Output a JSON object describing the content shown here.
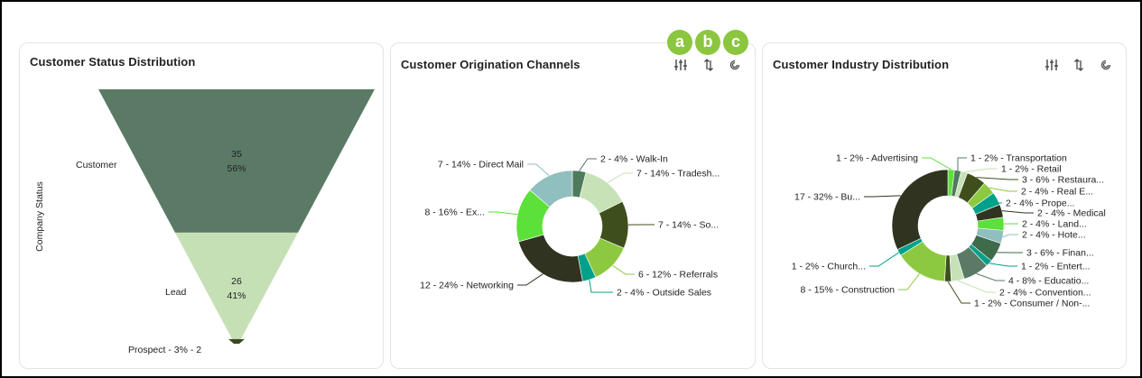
{
  "badges": [
    "a",
    "b",
    "c"
  ],
  "colors": {
    "funnel_customer": "#5a7a66",
    "funnel_lead": "#c6e0b6",
    "funnel_prospect": "#3b4a1e",
    "badge": "#8cc63f"
  },
  "toolbar_icons": [
    "sliders-icon",
    "sort-icon",
    "refresh-icon"
  ],
  "cards": {
    "status": {
      "title": "Customer Status Distribution",
      "axis_label": "Company Status"
    },
    "origination": {
      "title": "Customer Origination Channels"
    },
    "industry": {
      "title": "Customer Industry Distribution"
    }
  },
  "chart_data": [
    {
      "type": "funnel",
      "title": "Customer Status Distribution",
      "ylabel": "Company Status",
      "categories": [
        "Customer",
        "Lead",
        "Prospect"
      ],
      "values": [
        35,
        26,
        2
      ],
      "percents": [
        "56%",
        "41%",
        "3%"
      ],
      "value_labels": [
        "35",
        "26",
        "Prospect - 3% - 2"
      ],
      "colors": [
        "#5a7a66",
        "#c6e0b6",
        "#3b4a1e"
      ]
    },
    {
      "type": "pie",
      "title": "Customer Origination Channels",
      "slices": [
        {
          "label": "2 - 4% - Walk-In",
          "value": 2,
          "color": "#4f7a5c"
        },
        {
          "label": "7 - 14% - Tradesh...",
          "value": 7,
          "color": "#c8e2b8"
        },
        {
          "label": "7 - 14% - So...",
          "value": 7,
          "color": "#3e4f1c"
        },
        {
          "label": "6 - 12% - Referrals",
          "value": 6,
          "color": "#8dc940"
        },
        {
          "label": "2 - 4% - Outside Sales",
          "value": 2,
          "color": "#00a08a"
        },
        {
          "label": "12 - 24% - Networking",
          "value": 12,
          "color": "#2f3320"
        },
        {
          "label": "8 - 16% - Ex...",
          "value": 8,
          "color": "#5ce03a"
        },
        {
          "label": "7 - 14% - Direct Mail",
          "value": 7,
          "color": "#8fbfbe"
        }
      ]
    },
    {
      "type": "pie",
      "title": "Customer Industry Distribution",
      "slices": [
        {
          "label": "1 - 2% - Advertising",
          "value": 1,
          "color": "#5ce03a"
        },
        {
          "label": "1 - 2% - Transportation",
          "value": 1,
          "color": "#4f7a5c"
        },
        {
          "label": "1 - 2% - Retail",
          "value": 1,
          "color": "#c8e2b8"
        },
        {
          "label": "3 - 6% - Restaura...",
          "value": 3,
          "color": "#3e4f1c"
        },
        {
          "label": "2 - 4% - Real E...",
          "value": 2,
          "color": "#8dc940"
        },
        {
          "label": "2 - 4% - Prope...",
          "value": 2,
          "color": "#00a08a"
        },
        {
          "label": "2 - 4% - Medical",
          "value": 2,
          "color": "#2f3320"
        },
        {
          "label": "2 - 4% - Land...",
          "value": 2,
          "color": "#5ce03a"
        },
        {
          "label": "2 - 4% - Hote...",
          "value": 2,
          "color": "#8fbfbe"
        },
        {
          "label": "3 - 6% - Finan...",
          "value": 3,
          "color": "#3e6b4a"
        },
        {
          "label": "1 - 2% - Entert...",
          "value": 1,
          "color": "#00a08a"
        },
        {
          "label": "4 - 8% - Educatio...",
          "value": 4,
          "color": "#5a7a66"
        },
        {
          "label": "2 - 4% - Convention...",
          "value": 2,
          "color": "#c8e2b8"
        },
        {
          "label": "1 - 2% - Consumer / Non-...",
          "value": 1,
          "color": "#3e4f1c"
        },
        {
          "label": "8 - 15% - Construction",
          "value": 8,
          "color": "#8dc940"
        },
        {
          "label": "1 - 2% - Church...",
          "value": 1,
          "color": "#00a08a"
        },
        {
          "label": "17 - 32% - Bu...",
          "value": 17,
          "color": "#2f3320"
        }
      ]
    }
  ]
}
